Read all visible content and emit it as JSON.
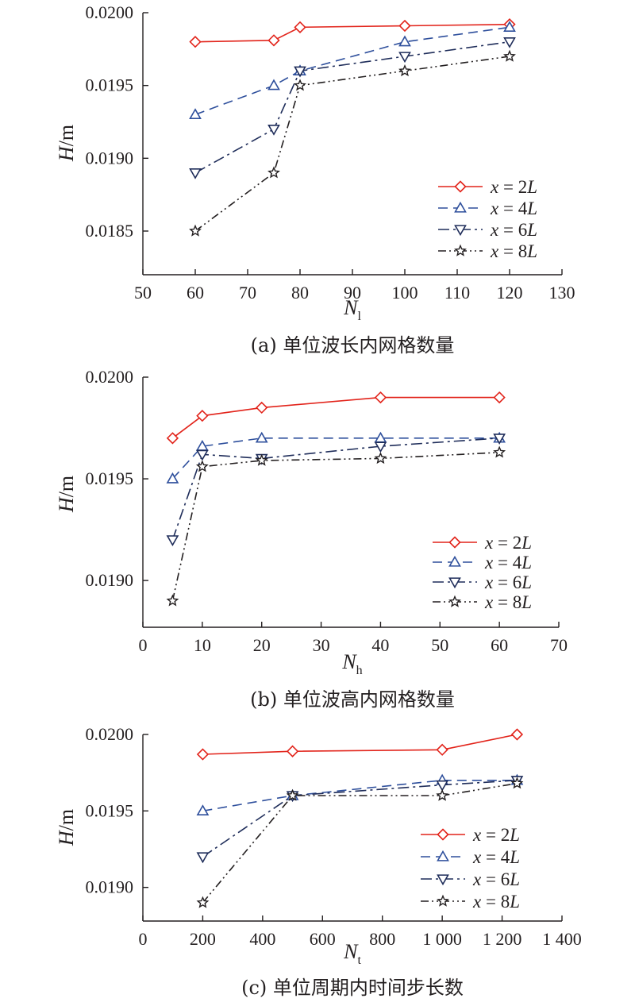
{
  "legend": {
    "entries": [
      {
        "series": "x = 2L",
        "prefix": "x",
        "eq": " = 2",
        "suffix": "L"
      },
      {
        "series": "x = 4L",
        "prefix": "x",
        "eq": " = 4",
        "suffix": "L"
      },
      {
        "series": "x = 6L",
        "prefix": "x",
        "eq": " = 6",
        "suffix": "L"
      },
      {
        "series": "x = 8L",
        "prefix": "x",
        "eq": " = 8",
        "suffix": "L"
      }
    ]
  },
  "series_styles": [
    {
      "name": "x = 2L",
      "color": "#e2231a",
      "dash": "",
      "marker": "diamond"
    },
    {
      "name": "x = 4L",
      "color": "#2e4f9c",
      "dash": "12,7",
      "marker": "triangle-up"
    },
    {
      "name": "x = 6L",
      "color": "#1f2d5a",
      "dash": "14,5,3,5",
      "marker": "triangle-down"
    },
    {
      "name": "x = 8L",
      "color": "#231f20",
      "dash": "10,4,2,4,2,4",
      "marker": "star"
    }
  ],
  "chart_data": [
    {
      "type": "line",
      "caption": "(a) 单位波长内网格数量",
      "xlabel_main": "N",
      "xlabel_sub": "l",
      "ylabel_main": "H",
      "ylabel_unit": "/m",
      "xlim": [
        50,
        130
      ],
      "ylim": [
        0.0182,
        0.02
      ],
      "xticks": [
        50,
        60,
        70,
        80,
        90,
        100,
        110,
        120,
        130
      ],
      "xtick_labels": [
        "50",
        "60",
        "70",
        "80",
        "90",
        "100",
        "110",
        "120",
        "130"
      ],
      "yticks": [
        0.0185,
        0.019,
        0.0195,
        0.02
      ],
      "ytick_labels": [
        "0.0185",
        "0.0190",
        "0.0195",
        "0.0200"
      ],
      "legend_position": "lower-right",
      "series": [
        {
          "name": "x = 2L",
          "x": [
            60,
            75,
            80,
            100,
            120
          ],
          "y": [
            0.0198,
            0.01981,
            0.0199,
            0.01991,
            0.01992
          ]
        },
        {
          "name": "x = 4L",
          "x": [
            60,
            75,
            80,
            100,
            120
          ],
          "y": [
            0.0193,
            0.0195,
            0.0196,
            0.0198,
            0.0199
          ]
        },
        {
          "name": "x = 6L",
          "x": [
            60,
            75,
            80,
            100,
            120
          ],
          "y": [
            0.0189,
            0.0192,
            0.0196,
            0.0197,
            0.0198
          ]
        },
        {
          "name": "x = 8L",
          "x": [
            60,
            75,
            80,
            100,
            120
          ],
          "y": [
            0.0185,
            0.0189,
            0.0195,
            0.0196,
            0.0197
          ]
        }
      ]
    },
    {
      "type": "line",
      "caption": "(b) 单位波高内网格数量",
      "xlabel_main": "N",
      "xlabel_sub": "h",
      "ylabel_main": "H",
      "ylabel_unit": "/m",
      "xlim": [
        0,
        70
      ],
      "ylim": [
        0.01877,
        0.02
      ],
      "xticks": [
        0,
        10,
        20,
        30,
        40,
        50,
        60,
        70
      ],
      "xtick_labels": [
        "0",
        "10",
        "20",
        "30",
        "40",
        "50",
        "60",
        "70"
      ],
      "yticks": [
        0.019,
        0.0195,
        0.02
      ],
      "ytick_labels": [
        "0.0190",
        "0.0195",
        "0.0200"
      ],
      "legend_position": "lower-right",
      "series": [
        {
          "name": "x = 2L",
          "x": [
            5,
            10,
            20,
            40,
            60
          ],
          "y": [
            0.0197,
            0.01981,
            0.01985,
            0.0199,
            0.0199
          ]
        },
        {
          "name": "x = 4L",
          "x": [
            5,
            10,
            20,
            40,
            60
          ],
          "y": [
            0.0195,
            0.01966,
            0.0197,
            0.0197,
            0.0197
          ]
        },
        {
          "name": "x = 6L",
          "x": [
            5,
            10,
            20,
            40,
            60
          ],
          "y": [
            0.0192,
            0.01962,
            0.0196,
            0.01966,
            0.0197
          ]
        },
        {
          "name": "x = 8L",
          "x": [
            5,
            10,
            20,
            40,
            60
          ],
          "y": [
            0.0189,
            0.01956,
            0.01959,
            0.0196,
            0.01963
          ]
        }
      ]
    },
    {
      "type": "line",
      "caption": "(c) 单位周期内时间步长数",
      "xlabel_main": "N",
      "xlabel_sub": "t",
      "ylabel_main": "H",
      "ylabel_unit": "/m",
      "xlim": [
        0,
        1400
      ],
      "ylim": [
        0.01878,
        0.02
      ],
      "xticks": [
        0,
        200,
        400,
        600,
        800,
        1000,
        1200,
        1400
      ],
      "xtick_labels": [
        "0",
        "200",
        "400",
        "600",
        "800",
        "1 000",
        "1 200",
        "1 400"
      ],
      "yticks": [
        0.019,
        0.0195,
        0.02
      ],
      "ytick_labels": [
        "0.0190",
        "0.0195",
        "0.0200"
      ],
      "legend_position": "lower-right",
      "series": [
        {
          "name": "x = 2L",
          "x": [
            200,
            500,
            1000,
            1250
          ],
          "y": [
            0.01987,
            0.01989,
            0.0199,
            0.02
          ]
        },
        {
          "name": "x = 4L",
          "x": [
            200,
            500,
            1000,
            1250
          ],
          "y": [
            0.0195,
            0.0196,
            0.0197,
            0.0197
          ]
        },
        {
          "name": "x = 6L",
          "x": [
            200,
            500,
            1000,
            1250
          ],
          "y": [
            0.0192,
            0.0196,
            0.01967,
            0.0197
          ]
        },
        {
          "name": "x = 8L",
          "x": [
            200,
            500,
            1000,
            1250
          ],
          "y": [
            0.0189,
            0.0196,
            0.0196,
            0.01968
          ]
        }
      ]
    }
  ]
}
